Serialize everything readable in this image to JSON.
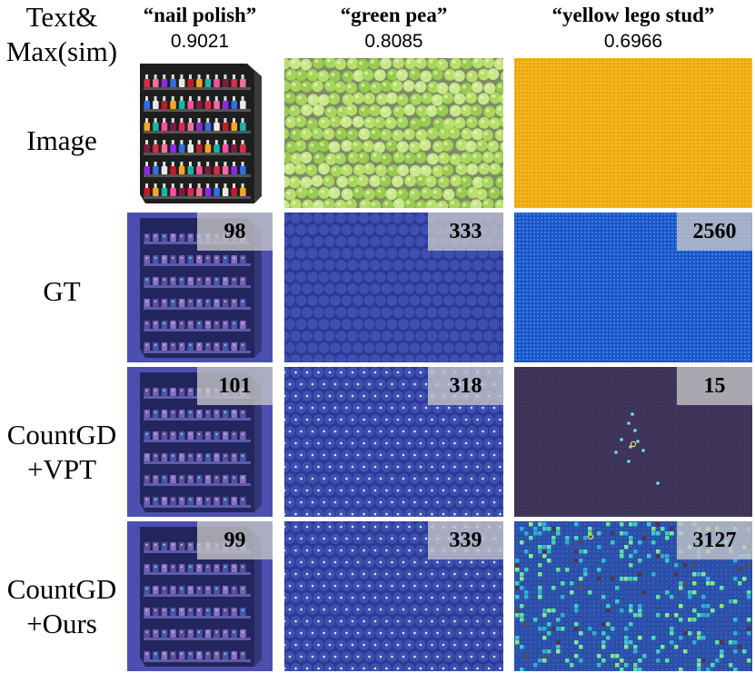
{
  "header": {
    "corner_line1": "Text&",
    "corner_line2": "Max(sim)"
  },
  "columns": [
    {
      "text": "“nail polish”",
      "sim": "0.9021"
    },
    {
      "text": "“green pea”",
      "sim": "0.8085"
    },
    {
      "text": "“yellow lego stud”",
      "sim": "0.6966"
    }
  ],
  "rows": [
    {
      "label_lines": [
        "Image"
      ],
      "counts": []
    },
    {
      "label_lines": [
        "GT"
      ],
      "counts": [
        "98",
        "333",
        "2560"
      ]
    },
    {
      "label_lines": [
        "CountGD",
        "+VPT"
      ],
      "counts": [
        "101",
        "318",
        "15"
      ]
    },
    {
      "label_lines": [
        "CountGD",
        "+Ours"
      ],
      "counts": [
        "99",
        "339",
        "3127"
      ]
    }
  ],
  "colors": {
    "density_overlay": "#3b3f9e",
    "pea_green": "#a6d65a",
    "lego_yellow": "#f4b51c",
    "lego_density_blue": "#1c55c8",
    "vpt_dark": "#3e3459",
    "ours_lego_bg": "#2b4fa8",
    "hot_point": "#7ef1a8"
  }
}
